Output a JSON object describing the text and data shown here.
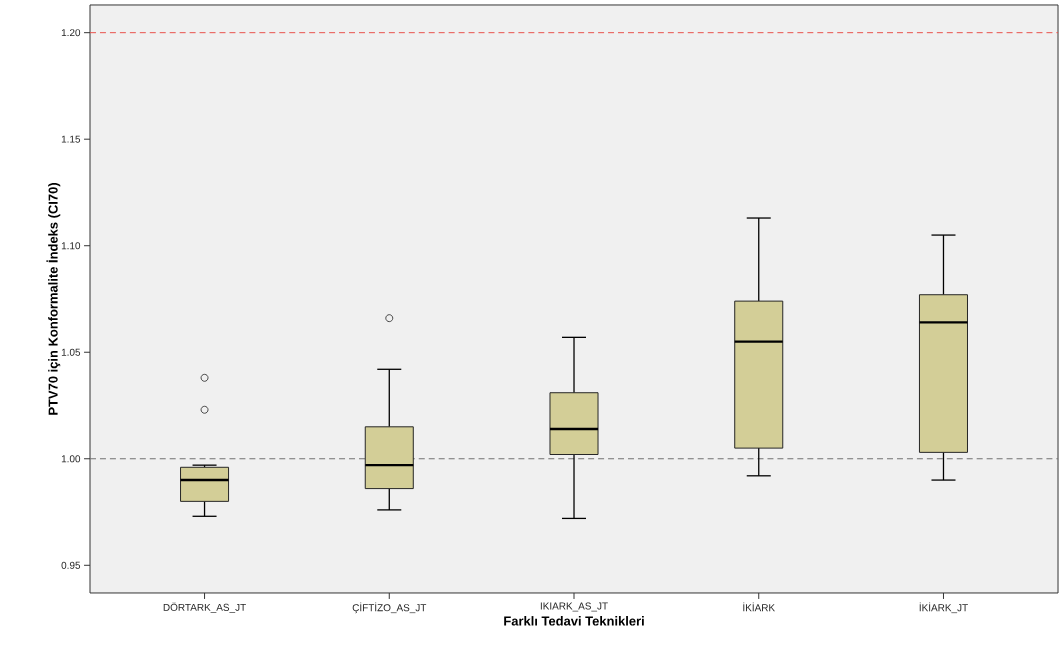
{
  "chart_data": {
    "type": "box",
    "xlabel": "Farklı Tedavi Teknikleri",
    "ylabel": "PTV70 için Konformalite İndeks (CI70)",
    "categories": [
      "DÖRTARK_AS_JT",
      "ÇİFTİZO_AS_JT",
      "IKIARK_AS_JT",
      "İKİARK",
      "İKİARK_JT"
    ],
    "color": "#d3ce97",
    "boxes": [
      {
        "low": 0.973,
        "q1": 0.98,
        "median": 0.99,
        "q3": 0.996,
        "high": 0.997,
        "outliers": [
          1.038,
          1.023
        ]
      },
      {
        "low": 0.976,
        "q1": 0.986,
        "median": 0.997,
        "q3": 1.015,
        "high": 1.042,
        "outliers": [
          1.066
        ]
      },
      {
        "low": 0.972,
        "q1": 1.002,
        "median": 1.014,
        "q3": 1.031,
        "high": 1.057
      },
      {
        "low": 0.992,
        "q1": 1.005,
        "median": 1.055,
        "q3": 1.074,
        "high": 1.113
      },
      {
        "low": 0.99,
        "q1": 1.003,
        "median": 1.064,
        "q3": 1.077,
        "high": 1.105
      }
    ],
    "ylim": [
      0.937,
      1.213
    ],
    "yticks": [
      {
        "value": 0.95,
        "label": "0.95"
      },
      {
        "value": 1.0,
        "label": "1.00"
      },
      {
        "value": 1.05,
        "label": "1.05"
      },
      {
        "value": 1.1,
        "label": "1.10"
      },
      {
        "value": 1.15,
        "label": "1.15"
      },
      {
        "value": 1.2,
        "label": "1.20"
      }
    ],
    "ref_lines": [
      {
        "axis": "y",
        "value": 1.2,
        "color": "#e8504a",
        "line_style": "dashed"
      },
      {
        "axis": "y",
        "value": 1.0,
        "color": "#707070",
        "line_style": "dashed"
      }
    ]
  }
}
